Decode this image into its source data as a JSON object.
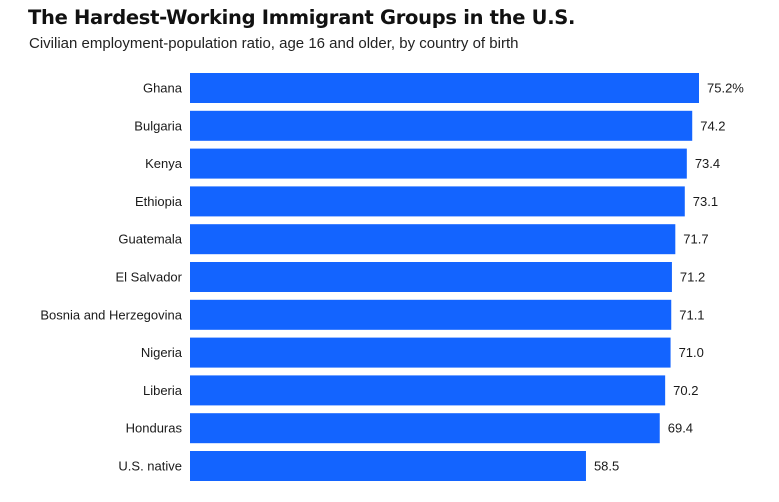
{
  "header": {
    "title": "The Hardest-Working Immigrant Groups in the U.S.",
    "subtitle": "Civilian employment-population ratio, age 16 and older, by country of birth"
  },
  "colors": {
    "bar": "#1364ff",
    "text": "#1a1a1a"
  },
  "chart_data": {
    "type": "bar",
    "orientation": "horizontal",
    "title": "The Hardest-Working Immigrant Groups in the U.S.",
    "subtitle": "Civilian employment-population ratio, age 16 and older, by country of birth",
    "xlabel": "",
    "ylabel": "",
    "categories": [
      "Ghana",
      "Bulgaria",
      "Kenya",
      "Ethiopia",
      "Guatemala",
      "El Salvador",
      "Bosnia and Herzegovina",
      "Nigeria",
      "Liberia",
      "Honduras",
      "U.S. native"
    ],
    "values": [
      75.2,
      74.2,
      73.4,
      73.1,
      71.7,
      71.2,
      71.1,
      71.0,
      70.2,
      69.4,
      58.5
    ],
    "value_labels": [
      "75.2%",
      "74.2",
      "73.4",
      "73.1",
      "71.7",
      "71.2",
      "71.1",
      "71.0",
      "70.2",
      "69.4",
      "58.5"
    ],
    "xlim": [
      0,
      75.2
    ],
    "grid": false,
    "legend": "none"
  }
}
